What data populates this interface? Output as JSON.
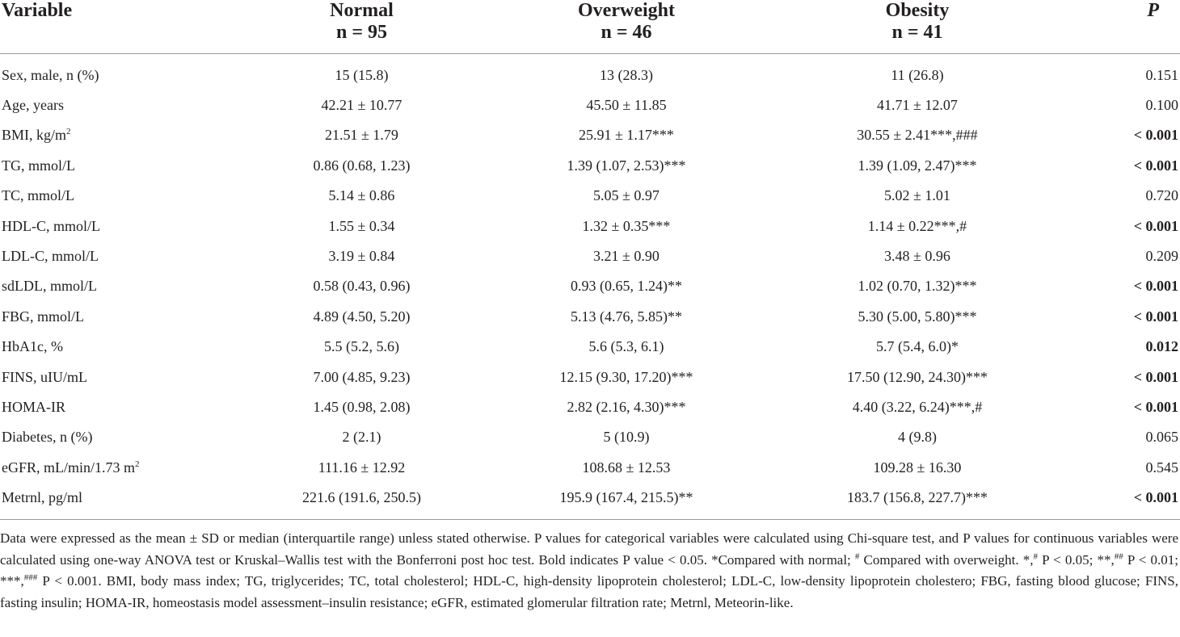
{
  "header": {
    "variable": "Variable",
    "groups": [
      {
        "name": "Normal",
        "n": "n = 95"
      },
      {
        "name": "Overweight",
        "n": "n = 46"
      },
      {
        "name": "Obesity",
        "n": "n = 41"
      }
    ],
    "p": "P"
  },
  "rows": [
    {
      "variable": "Sex, male, n (%)",
      "sup": "",
      "tail": "",
      "normal": "15 (15.8)",
      "overweight": "13 (28.3)",
      "obesity": "11 (26.8)",
      "p": "0.151",
      "p_prefix": "",
      "p_bold": false
    },
    {
      "variable": "Age, years",
      "sup": "",
      "tail": "",
      "normal": "42.21 ± 10.77",
      "overweight": "45.50 ± 11.85",
      "obesity": "41.71 ± 12.07",
      "p": "0.100",
      "p_prefix": "",
      "p_bold": false
    },
    {
      "variable": "BMI, kg/m",
      "sup": "2",
      "tail": "",
      "normal": "21.51 ± 1.79",
      "overweight": "25.91 ± 1.17***",
      "obesity": "30.55 ± 2.41***,###",
      "p": "0.001",
      "p_prefix": "< ",
      "p_bold": true
    },
    {
      "variable": "TG, mmol/L",
      "sup": "",
      "tail": "",
      "normal": "0.86 (0.68, 1.23)",
      "overweight": "1.39 (1.07, 2.53)***",
      "obesity": "1.39 (1.09, 2.47)***",
      "p": "0.001",
      "p_prefix": "< ",
      "p_bold": true
    },
    {
      "variable": "TC, mmol/L",
      "sup": "",
      "tail": "",
      "normal": "5.14 ± 0.86",
      "overweight": "5.05 ± 0.97",
      "obesity": "5.02 ± 1.01",
      "p": "0.720",
      "p_prefix": "",
      "p_bold": false
    },
    {
      "variable": "HDL-C, mmol/L",
      "sup": "",
      "tail": "",
      "normal": "1.55 ± 0.34",
      "overweight": "1.32 ± 0.35***",
      "obesity": "1.14 ± 0.22***,#",
      "p": "0.001",
      "p_prefix": "< ",
      "p_bold": true
    },
    {
      "variable": "LDL-C, mmol/L",
      "sup": "",
      "tail": "",
      "normal": "3.19 ± 0.84",
      "overweight": "3.21 ± 0.90",
      "obesity": "3.48 ± 0.96",
      "p": "0.209",
      "p_prefix": "",
      "p_bold": false
    },
    {
      "variable": "sdLDL, mmol/L",
      "sup": "",
      "tail": "",
      "normal": "0.58 (0.43, 0.96)",
      "overweight": "0.93 (0.65, 1.24)**",
      "obesity": "1.02 (0.70, 1.32)***",
      "p": "0.001",
      "p_prefix": "< ",
      "p_bold": true
    },
    {
      "variable": "FBG, mmol/L",
      "sup": "",
      "tail": "",
      "normal": "4.89 (4.50, 5.20)",
      "overweight": "5.13 (4.76, 5.85)**",
      "obesity": "5.30 (5.00, 5.80)***",
      "p": "0.001",
      "p_prefix": "< ",
      "p_bold": true
    },
    {
      "variable": "HbA1c, %",
      "sup": "",
      "tail": "",
      "normal": "5.5 (5.2, 5.6)",
      "overweight": "5.6 (5.3, 6.1)",
      "obesity": "5.7 (5.4, 6.0)*",
      "p": "0.012",
      "p_prefix": "",
      "p_bold": true
    },
    {
      "variable": "FINS, uIU/mL",
      "sup": "",
      "tail": "",
      "normal": "7.00 (4.85, 9.23)",
      "overweight": "12.15 (9.30, 17.20)***",
      "obesity": "17.50 (12.90, 24.30)***",
      "p": "0.001",
      "p_prefix": "< ",
      "p_bold": true
    },
    {
      "variable": "HOMA-IR",
      "sup": "",
      "tail": "",
      "normal": "1.45 (0.98, 2.08)",
      "overweight": "2.82 (2.16, 4.30)***",
      "obesity": "4.40 (3.22, 6.24)***,#",
      "p": "0.001",
      "p_prefix": "< ",
      "p_bold": true
    },
    {
      "variable": "Diabetes, n (%)",
      "sup": "",
      "tail": "",
      "normal": "2 (2.1)",
      "overweight": "5 (10.9)",
      "obesity": "4 (9.8)",
      "p": "0.065",
      "p_prefix": "",
      "p_bold": false
    },
    {
      "variable": "eGFR, mL/min/1.73 m",
      "sup": "2",
      "tail": "",
      "normal": "111.16 ± 12.92",
      "overweight": "108.68 ± 12.53",
      "obesity": "109.28 ± 16.30",
      "p": "0.545",
      "p_prefix": "",
      "p_bold": false
    },
    {
      "variable": "Metrnl, pg/ml",
      "sup": "",
      "tail": "",
      "normal": "221.6 (191.6, 250.5)",
      "overweight": "195.9 (167.4, 215.5)**",
      "obesity": "183.7 (156.8, 227.7)***",
      "p": "0.001",
      "p_prefix": "< ",
      "p_bold": true
    }
  ],
  "footnote": {
    "part1": "Data were expressed as the mean ± SD or median (interquartile range) unless stated otherwise. P values for categorical variables were calculated using Chi-square test, and P values for continuous variables were calculated using one-way ANOVA test or Kruskal–Wallis test with the Bonferroni post hoc test. Bold indicates P value < 0.05. *Compared with normal; ",
    "sup_hash": "#",
    "part2": " Compared with overweight. *,",
    "sup_hash2": "#",
    "part3": " P < 0.05; **,",
    "sup_hash3": "##",
    "part4": " P < 0.01; ***,",
    "sup_hash4": "###",
    "part5": " P < 0.001. BMI, body mass index; TG, triglycerides; TC, total cholesterol; HDL-C, high-density lipoprotein cholesterol; LDL-C, low-density lipoprotein cholestero; FBG, fasting blood glucose; FINS, fasting insulin; HOMA-IR, homeostasis model assessment–insulin resistance; eGFR, estimated glomerular filtration rate; Metrnl, Meteorin-like."
  }
}
